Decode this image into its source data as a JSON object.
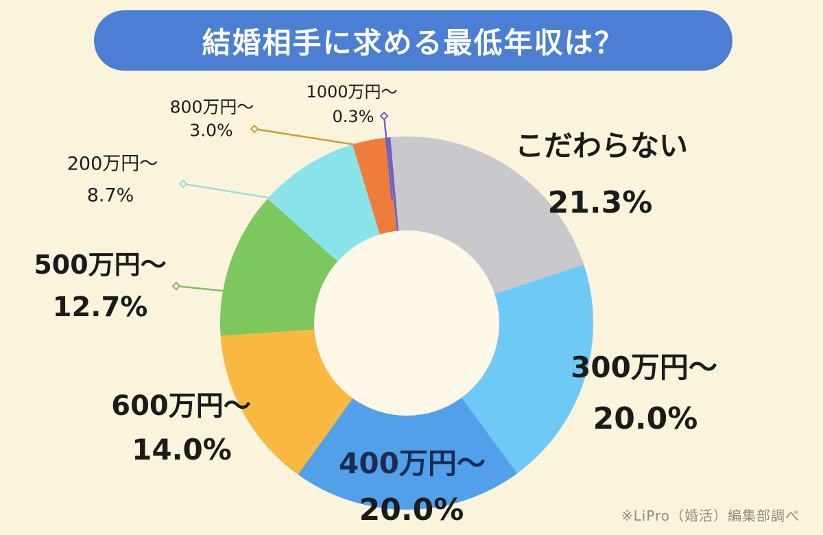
{
  "title": "結婚相手に求める最低年収は？",
  "source_note": "※LiPro（婚活）編集部調べ",
  "colors": {
    "background": "#FBF4DD",
    "title_bg": "#4C7FD3",
    "title_text": "#FFFFFF",
    "hole": "#FDF8E7",
    "label_text": "#1B1B1B",
    "label_text_400man": "#1B2B52",
    "source_text": "#8F8A7C"
  },
  "chart_data": {
    "type": "pie",
    "subtype": "donut",
    "title": "結婚相手に求める最低年収は？",
    "start_angle_deg": -5,
    "direction": "clockwise",
    "total": 100,
    "segments": [
      {
        "id": "kodawaranai",
        "label": "こだわらない",
        "value": 21.3,
        "pct_label": "21.3%",
        "color": "#C9C9CD"
      },
      {
        "id": "300man",
        "label": "300万円〜",
        "value": 20.0,
        "pct_label": "20.0%",
        "color": "#6FC9F6"
      },
      {
        "id": "400man",
        "label": "400万円〜",
        "value": 20.0,
        "pct_label": "20.0%",
        "color": "#52A0E9"
      },
      {
        "id": "600man",
        "label": "600万円〜",
        "value": 14.0,
        "pct_label": "14.0%",
        "color": "#F9B840"
      },
      {
        "id": "500man",
        "label": "500万円〜",
        "value": 12.7,
        "pct_label": "12.7%",
        "color": "#7CC75E",
        "leader_color": "#84B962"
      },
      {
        "id": "200man",
        "label": "200万円〜",
        "value": 8.7,
        "pct_label": "8.7%",
        "color": "#88E4E8",
        "leader_color": "#9FD9DD"
      },
      {
        "id": "800man",
        "label": "800万円〜",
        "value": 3.0,
        "pct_label": "3.0%",
        "color": "#EE7D3D",
        "leader_color": "#D49B2E"
      },
      {
        "id": "1000man",
        "label": "1000万円〜",
        "value": 0.3,
        "pct_label": "0.3%",
        "color": "#6A62C8",
        "leader_color": "#6A62C8"
      }
    ]
  }
}
